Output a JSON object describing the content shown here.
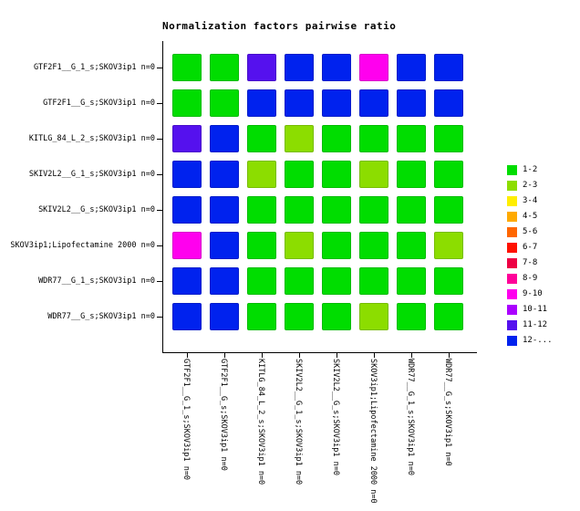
{
  "chart_data": {
    "type": "heatmap",
    "title": "Normalization factors pairwise ratio",
    "rows": [
      "GTF2F1__G_1_s;SKOV3ip1 n=0",
      "GTF2F1__G_s;SKOV3ip1 n=0",
      "KITLG_84_L_2_s;SKOV3ip1 n=0",
      "SKIV2L2__G_1_s;SKOV3ip1 n=0",
      "SKIV2L2__G_s;SKOV3ip1 n=0",
      "SKOV3ip1;Lipofectamine 2000 n=0",
      "WDR77__G_1_s;SKOV3ip1 n=0",
      "WDR77__G_s;SKOV3ip1 n=0"
    ],
    "columns": [
      "GTF2F1__G_1_s;SKOV3ip1 n=0",
      "GTF2F1__G_s;SKOV3ip1 n=0",
      "KITLG_84_L_2_s;SKOV3ip1 n=0",
      "SKIV2L2__G_1_s;SKOV3ip1 n=0",
      "SKIV2L2__G_s;SKOV3ip1 n=0",
      "SKOV3ip1;Lipofectamine 2000 n=0",
      "WDR77__G_1_s;SKOV3ip1 n=0",
      "WDR77__G_s;SKOV3ip1 n=0"
    ],
    "values": [
      [
        "1-2",
        "1-2",
        "11-12",
        "12-...",
        "12-...",
        "9-10",
        "12-...",
        "12-..."
      ],
      [
        "1-2",
        "1-2",
        "12-...",
        "12-...",
        "12-...",
        "12-...",
        "12-...",
        "12-..."
      ],
      [
        "11-12",
        "12-...",
        "1-2",
        "2-3",
        "1-2",
        "1-2",
        "1-2",
        "1-2"
      ],
      [
        "12-...",
        "12-...",
        "2-3",
        "1-2",
        "1-2",
        "2-3",
        "1-2",
        "1-2"
      ],
      [
        "12-...",
        "12-...",
        "1-2",
        "1-2",
        "1-2",
        "1-2",
        "1-2",
        "1-2"
      ],
      [
        "9-10",
        "12-...",
        "1-2",
        "2-3",
        "1-2",
        "1-2",
        "1-2",
        "2-3"
      ],
      [
        "12-...",
        "12-...",
        "1-2",
        "1-2",
        "1-2",
        "1-2",
        "1-2",
        "1-2"
      ],
      [
        "12-...",
        "12-...",
        "1-2",
        "1-2",
        "1-2",
        "2-3",
        "1-2",
        "1-2"
      ]
    ],
    "legend": {
      "position": "right",
      "entries": [
        {
          "label": "1-2",
          "color": "#00dd00"
        },
        {
          "label": "2-3",
          "color": "#8cdd00"
        },
        {
          "label": "3-4",
          "color": "#ffee00"
        },
        {
          "label": "4-5",
          "color": "#ffaa00"
        },
        {
          "label": "5-6",
          "color": "#ff6600"
        },
        {
          "label": "6-7",
          "color": "#ff1100"
        },
        {
          "label": "7-8",
          "color": "#ee0044"
        },
        {
          "label": "8-9",
          "color": "#ff0099"
        },
        {
          "label": "9-10",
          "color": "#ff00ee"
        },
        {
          "label": "10-11",
          "color": "#aa00ff"
        },
        {
          "label": "11-12",
          "color": "#5511ee"
        },
        {
          "label": "12-...",
          "color": "#0022ee"
        }
      ]
    },
    "grid": "off",
    "axis_frame": "left-and-bottom"
  }
}
